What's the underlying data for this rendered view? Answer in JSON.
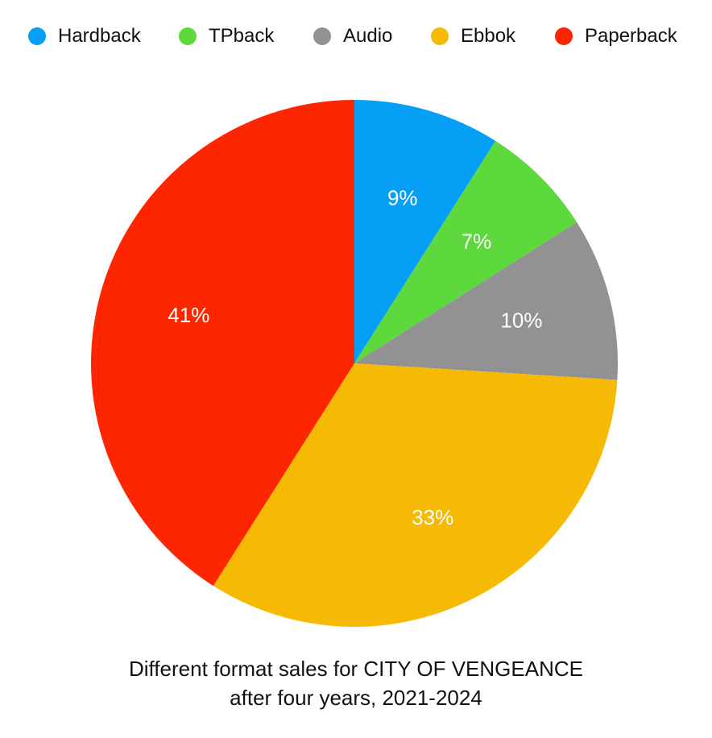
{
  "chart_data": {
    "type": "pie",
    "categories": [
      "Hardback",
      "TPback",
      "Audio",
      "Ebbok",
      "Paperback"
    ],
    "values": [
      9,
      7,
      10,
      33,
      41
    ],
    "value_labels": [
      "9%",
      "7%",
      "10%",
      "33%",
      "41%"
    ],
    "colors": [
      "#069ff6",
      "#5dd93d",
      "#929292",
      "#f6ba04",
      "#fe2600"
    ],
    "legend_position": "top",
    "start_angle": "12 o'clock, clockwise",
    "caption_line1": "Different format sales for CITY OF VENGEANCE",
    "caption_line2": "after four years, 2021-2024"
  }
}
